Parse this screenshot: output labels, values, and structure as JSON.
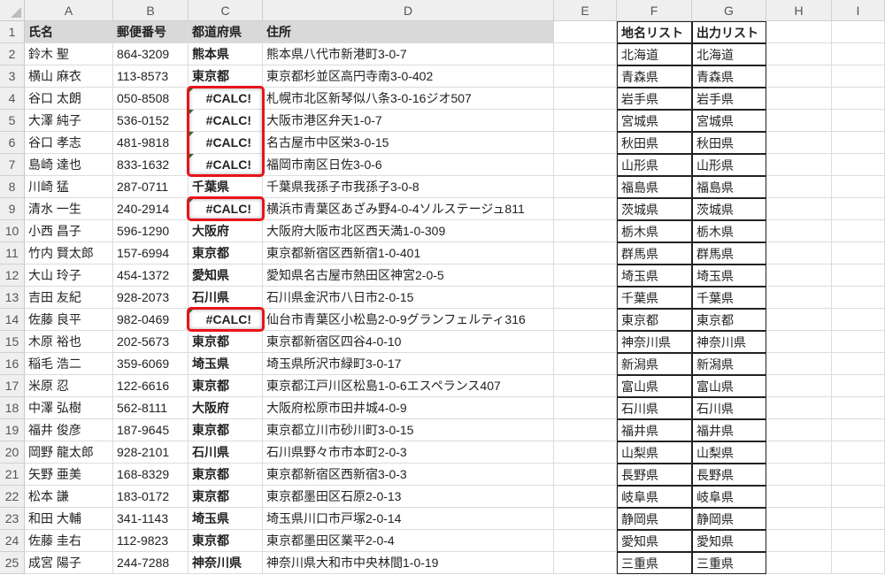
{
  "columns": [
    "A",
    "B",
    "C",
    "D",
    "E",
    "F",
    "G",
    "H",
    "I"
  ],
  "headers": {
    "name": "氏名",
    "zip": "郵便番号",
    "pref": "都道府県",
    "address": "住所",
    "region_list": "地名リスト",
    "output_list": "出力リスト"
  },
  "rows": [
    [
      "鈴木 聖",
      "864-3209",
      "熊本県",
      "熊本県八代市新港町3-0-7"
    ],
    [
      "横山 麻衣",
      "113-8573",
      "東京都",
      "東京都杉並区高円寺南3-0-402"
    ],
    [
      "谷口 太朗",
      "050-8508",
      "#CALC!",
      "札幌市北区新琴似八条3-0-16ジオ507"
    ],
    [
      "大澤 純子",
      "536-0152",
      "#CALC!",
      "大阪市港区弁天1-0-7"
    ],
    [
      "谷口 孝志",
      "481-9818",
      "#CALC!",
      "名古屋市中区栄3-0-15"
    ],
    [
      "島崎 達也",
      "833-1632",
      "#CALC!",
      "福岡市南区日佐3-0-6"
    ],
    [
      "川崎 猛",
      "287-0711",
      "千葉県",
      "千葉県我孫子市我孫子3-0-8"
    ],
    [
      "清水 一生",
      "240-2914",
      "#CALC!",
      "横浜市青葉区あざみ野4-0-4ソルステージュ811"
    ],
    [
      "小西 昌子",
      "596-1290",
      "大阪府",
      "大阪府大阪市北区西天満1-0-309"
    ],
    [
      "竹内 賢太郎",
      "157-6994",
      "東京都",
      "東京都新宿区西新宿1-0-401"
    ],
    [
      "大山 玲子",
      "454-1372",
      "愛知県",
      "愛知県名古屋市熱田区神宮2-0-5"
    ],
    [
      "吉田 友紀",
      "928-2073",
      "石川県",
      "石川県金沢市八日市2-0-15"
    ],
    [
      "佐藤 良平",
      "982-0469",
      "#CALC!",
      "仙台市青葉区小松島2-0-9グランフェルティ316"
    ],
    [
      "木原 裕也",
      "202-5673",
      "東京都",
      "東京都新宿区四谷4-0-10"
    ],
    [
      "稲毛 浩二",
      "359-6069",
      "埼玉県",
      "埼玉県所沢市緑町3-0-17"
    ],
    [
      "米原 忍",
      "122-6616",
      "東京都",
      "東京都江戸川区松島1-0-6エスペランス407"
    ],
    [
      "中澤 弘樹",
      "562-8111",
      "大阪府",
      "大阪府松原市田井城4-0-9"
    ],
    [
      "福井 俊彦",
      "187-9645",
      "東京都",
      "東京都立川市砂川町3-0-15"
    ],
    [
      "岡野 龍太郎",
      "928-2101",
      "石川県",
      "石川県野々市市本町2-0-3"
    ],
    [
      "矢野 亜美",
      "168-8329",
      "東京都",
      "東京都新宿区西新宿3-0-3"
    ],
    [
      "松本 謙",
      "183-0172",
      "東京都",
      "東京都墨田区石原2-0-13"
    ],
    [
      "和田 大輔",
      "341-1143",
      "埼玉県",
      "埼玉県川口市戸塚2-0-14"
    ],
    [
      "佐藤 圭右",
      "112-9823",
      "東京都",
      "東京都墨田区業平2-0-4"
    ],
    [
      "成宮 陽子",
      "244-7288",
      "神奈川県",
      "神奈川県大和市中央林間1-0-19"
    ]
  ],
  "region_list": [
    "北海道",
    "青森県",
    "岩手県",
    "宮城県",
    "秋田県",
    "山形県",
    "福島県",
    "茨城県",
    "栃木県",
    "群馬県",
    "埼玉県",
    "千葉県",
    "東京都",
    "神奈川県",
    "新潟県",
    "富山県",
    "石川県",
    "福井県",
    "山梨県",
    "長野県",
    "岐阜県",
    "静岡県",
    "愛知県",
    "三重県"
  ],
  "output_list": [
    "北海道",
    "青森県",
    "岩手県",
    "宮城県",
    "秋田県",
    "山形県",
    "福島県",
    "茨城県",
    "栃木県",
    "群馬県",
    "埼玉県",
    "千葉県",
    "東京都",
    "神奈川県",
    "新潟県",
    "富山県",
    "石川県",
    "福井県",
    "山梨県",
    "長野県",
    "岐阜県",
    "静岡県",
    "愛知県",
    "三重県"
  ],
  "colors": {
    "highlight": "#e8131b",
    "header_fill": "#d9d9d9",
    "error_marker": "#1e7e34"
  }
}
